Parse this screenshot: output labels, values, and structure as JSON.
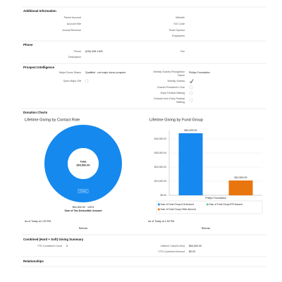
{
  "additional_information": {
    "title": "Additional Information",
    "left": [
      "Parent Account",
      "Account Site",
      "Annual Revenue"
    ],
    "right": [
      "Website",
      "SIC Code",
      "Ticker Symbol",
      "Employees"
    ]
  },
  "phone_section": {
    "title": "Phone",
    "phone_label": "Phone",
    "phone_value": "(515) 496-1300",
    "description_label": "Description",
    "fax_label": "Fax"
  },
  "prospect_intelligence": {
    "title": "Prospect Intelligence",
    "major_donor_status_label": "Major Donor Status",
    "major_donor_status_value": "Qualified - not major donor prospect",
    "open_major_gift_label": "Open Major Gift",
    "recognition_name_label": [
      "Weekly Society Recognition",
      "Name"
    ],
    "recognition_name_value": "Philips Foundation",
    "weekly_society_label": "Weekly Society",
    "charter_club_label": "Charter President's Club",
    "early_festival_label": "Early Festival Waiting",
    "exclude_label": [
      "Exclude from Early Festival",
      "Waiting"
    ]
  },
  "donation_charts": {
    "title": "Donation Charts",
    "footers": [
      {
        "as_of": "As of Today at 1:53 PM",
        "refresh": "Refresh"
      },
      {
        "as_of": "As of Today at 1:53 PM",
        "refresh": "Refresh"
      }
    ]
  },
  "chart_data": [
    {
      "type": "donut",
      "title": "Lifetime Giving by Contact Role",
      "categories": [
        "Donor"
      ],
      "values": [
        54500
      ],
      "colors": [
        "#1589ee"
      ],
      "center_title": "Total",
      "center_value": "$54,500.00",
      "summary": "$54,500.00 · 100%",
      "measure": "Sum of Tax-Deductible Amount"
    },
    {
      "type": "bar",
      "title": "Lifetime Giving by Fund Group",
      "categories": [
        "Philips Foundation"
      ],
      "series": [
        {
          "name": "Sum of Fund Group ICA Amount",
          "color": "#1589ee",
          "values": [
            44000
          ],
          "value_labels": [
            "$44,000.00"
          ]
        },
        {
          "name": "Sum of Fund Group IPR Amount",
          "color": "#4bca81",
          "values": [
            0
          ]
        },
        {
          "name": "Sum of Fund Group Other Amount",
          "color": "#e8750e",
          "values": [
            10500
          ],
          "value_labels": [
            "$10,500.00"
          ]
        }
      ],
      "ylim": [
        0,
        46000
      ],
      "yticks": [
        {
          "value": 0,
          "label": "$0.00"
        },
        {
          "value": 10000,
          "label": "$10,000.00"
        },
        {
          "value": 20000,
          "label": "$20,000.00"
        },
        {
          "value": 30000,
          "label": "$30,000.00"
        },
        {
          "value": 40000,
          "label": "$40,000.00"
        }
      ],
      "legend": "bottom"
    }
  ],
  "giving_summary": {
    "title": "Combined (Hard + Soft) Giving Summary",
    "ytd_count_label": "YTD Combined Count",
    "ytd_count_value": "0",
    "lifetime_label": "Lifetime Cash/In-Kind",
    "lifetime_value": "$54,500.00",
    "ytd_amount_label": "YTD Combined Amount",
    "ytd_amount_value": "$0.00"
  },
  "relationships": {
    "title": "Relationships"
  }
}
